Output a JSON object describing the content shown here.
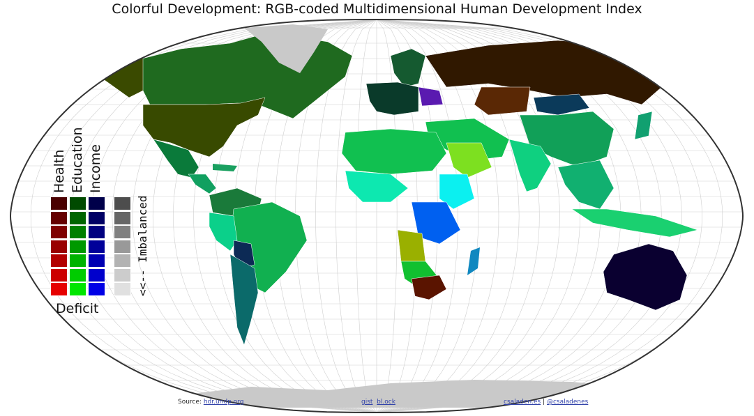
{
  "title": "Colorful Development: RGB-coded Multidimensional Human Development Index",
  "legend": {
    "headers": [
      "Health",
      "Education",
      "Income"
    ],
    "deficit_label": "Deficit",
    "imbalanced_label": "<<-- Imbalanced",
    "colors": {
      "health": [
        "#4a0000",
        "#650000",
        "#7f0000",
        "#990000",
        "#b30000",
        "#cc0000",
        "#e60000"
      ],
      "education": [
        "#004a00",
        "#006500",
        "#007f00",
        "#009900",
        "#00b300",
        "#00cc00",
        "#00e600"
      ],
      "income": [
        "#00004a",
        "#000065",
        "#00007f",
        "#000099",
        "#0000b3",
        "#0000cc",
        "#0000e6"
      ],
      "imbalance": [
        "#4d4d4d",
        "#666666",
        "#808080",
        "#999999",
        "#b3b3b3",
        "#cccccc",
        "#e0e0e0"
      ]
    }
  },
  "footer": {
    "source_prefix": "Source: ",
    "source_link": "hdr.undp.org",
    "gist": "gist",
    "block": "bl.ock",
    "site": "csaladen.es",
    "separator": " | ",
    "twitter": "@csaladenes"
  },
  "colors": {
    "ocean": "#ffffff",
    "graticule": "#cfcfcf",
    "no_data": "#cccccc",
    "outline": "#333333"
  }
}
